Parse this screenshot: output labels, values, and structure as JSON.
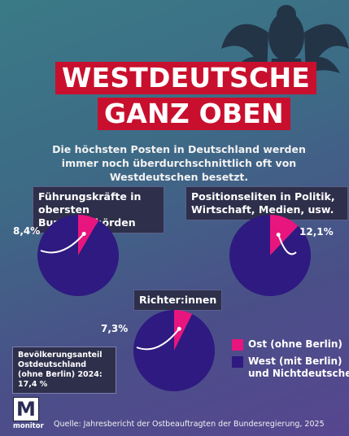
{
  "title": {
    "line1": "WESTDEUTSCHE",
    "line2": "GANZ OBEN"
  },
  "subtitle": "Die höchsten Posten in Deutschland werden immer noch überdurchschnittlich oft von Westdeutschen besetzt.",
  "population_note": "Bevölkerungsanteil Ostdeutschland (ohne Berlin) 2024: 17,4 %",
  "legend": {
    "east": "Ost (ohne Berlin)",
    "west": "West (mit Berlin) und Nichtdeutsche"
  },
  "source": "Quelle: Jahresbericht der Ostbeauftragten der Bundesregierung, 2025",
  "logo": {
    "mark": "M",
    "name": "monitor"
  },
  "colors": {
    "east": "#e8157e",
    "west": "#2e1a80",
    "title_background": "#c8102e",
    "label_background": "#2e2f4a"
  },
  "icons": [
    "eagle-icon",
    "monitor-logo-icon"
  ],
  "chart_data": [
    {
      "type": "pie",
      "title": "Führungskräfte in obersten Bundesbehörden",
      "categories": [
        "Ost (ohne Berlin)",
        "West (mit Berlin) und Nichtdeutsche"
      ],
      "values": [
        8.4,
        91.6
      ],
      "data_label": "8,4%"
    },
    {
      "type": "pie",
      "title": "Positionseliten in Politik, Wirtschaft, Medien, usw.",
      "categories": [
        "Ost (ohne Berlin)",
        "West (mit Berlin) und Nichtdeutsche"
      ],
      "values": [
        12.1,
        87.9
      ],
      "data_label": "12,1%"
    },
    {
      "type": "pie",
      "title": "Richter:innen",
      "categories": [
        "Ost (ohne Berlin)",
        "West (mit Berlin) und Nichtdeutsche"
      ],
      "values": [
        7.3,
        92.7
      ],
      "data_label": "7,3%"
    }
  ]
}
